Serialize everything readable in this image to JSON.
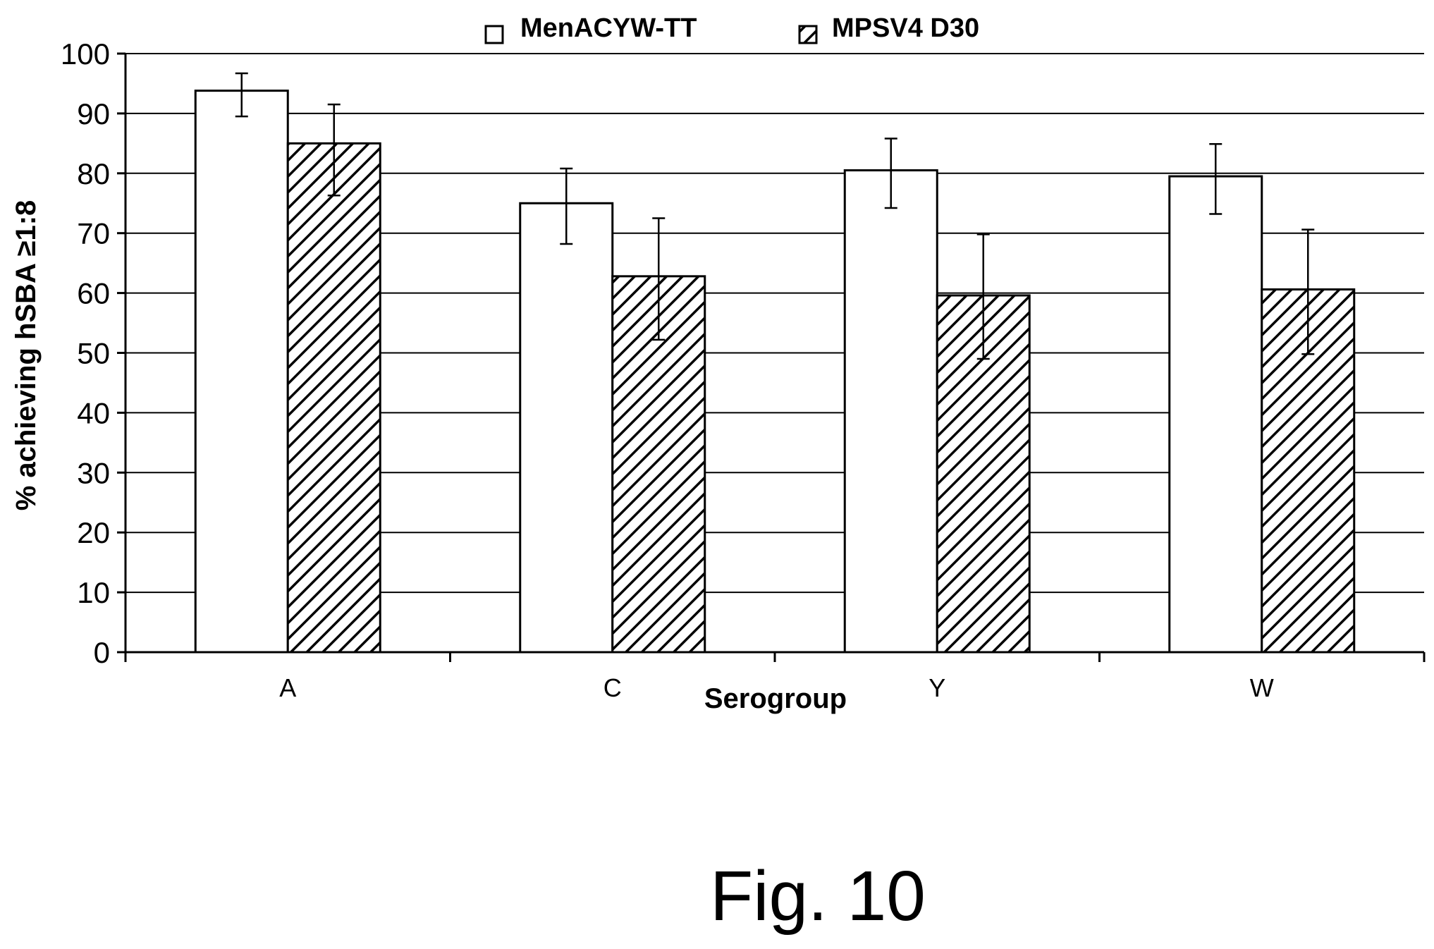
{
  "figure": {
    "caption": "Fig. 10"
  },
  "chart_data": {
    "type": "bar",
    "title": "",
    "xlabel": "Serogroup",
    "ylabel": "% achieving hSBA ≥1:8",
    "ylim": [
      0,
      100
    ],
    "yticks": [
      0,
      10,
      20,
      30,
      40,
      50,
      60,
      70,
      80,
      90,
      100
    ],
    "grid": true,
    "legend_position": "top-center",
    "categories": [
      "A",
      "C",
      "Y",
      "W"
    ],
    "series": [
      {
        "name": "MenACYW-TT",
        "fill": "#ffffff",
        "pattern": "none",
        "values": [
          93.8,
          75.0,
          80.5,
          79.5
        ],
        "error_low": [
          89.5,
          68.2,
          74.2,
          73.2
        ],
        "error_high": [
          96.7,
          80.8,
          85.8,
          84.9
        ]
      },
      {
        "name": "MPSV4 D30",
        "fill": "#ffffff",
        "pattern": "diagonal-hatch",
        "values": [
          85.0,
          62.8,
          59.6,
          60.6
        ],
        "error_low": [
          76.3,
          52.2,
          49.0,
          49.8
        ],
        "error_high": [
          91.5,
          72.5,
          69.8,
          70.6
        ]
      }
    ]
  }
}
